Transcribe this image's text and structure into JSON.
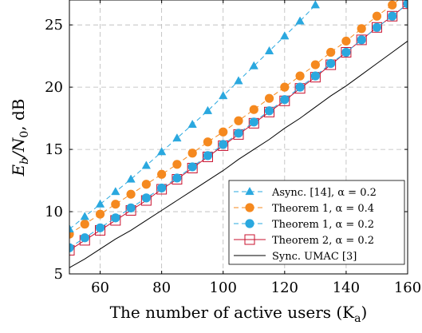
{
  "chart_data": {
    "type": "line",
    "xlabel": "The number of active users (K",
    "xlabel_sub": "a",
    "xlabel_close": ")",
    "ylabel_main": "E",
    "ylabel_sub1": "b",
    "ylabel_slash": "/N",
    "ylabel_sub2": "0",
    "ylabel_unit": ", dB",
    "xlim": [
      50,
      160
    ],
    "ylim": [
      5,
      27
    ],
    "xticks": [
      60,
      80,
      100,
      120,
      140,
      160
    ],
    "yticks": [
      5,
      10,
      15,
      20,
      25
    ],
    "xtick_labels": [
      "60",
      "80",
      "100",
      "120",
      "140",
      "160"
    ],
    "ytick_labels": [
      "5",
      "10",
      "15",
      "20",
      "25"
    ],
    "grid": true,
    "legend_position": "bottom-right",
    "series": [
      {
        "name": "Async. [14], α = 0.2",
        "color": "#2aa8df",
        "line": "dashed",
        "marker": "triangle",
        "x": [
          50,
          55,
          60,
          65,
          70,
          75,
          80,
          85,
          90,
          95,
          100,
          105,
          110,
          115,
          120,
          125,
          130
        ],
        "y": [
          8.6,
          9.6,
          10.6,
          11.6,
          12.6,
          13.7,
          14.8,
          15.9,
          17.0,
          18.1,
          19.3,
          20.5,
          21.7,
          22.9,
          24.1,
          25.3,
          26.6
        ]
      },
      {
        "name": "Theorem 1, α = 0.4",
        "color": "#f5891f",
        "line": "dashed",
        "marker": "circle",
        "x": [
          50,
          55,
          60,
          65,
          70,
          75,
          80,
          85,
          90,
          95,
          100,
          105,
          110,
          115,
          120,
          125,
          130,
          135,
          140,
          145,
          150,
          155,
          160
        ],
        "y": [
          8.2,
          9.0,
          9.8,
          10.6,
          11.4,
          12.2,
          13.0,
          13.8,
          14.7,
          15.6,
          16.4,
          17.3,
          18.2,
          19.1,
          20.0,
          20.9,
          21.8,
          22.8,
          23.7,
          24.7,
          25.7,
          26.6,
          27.6
        ]
      },
      {
        "name": "Theorem 1, α = 0.2",
        "color": "#2aa8df",
        "line": "dashed",
        "marker": "circle",
        "x": [
          50,
          55,
          60,
          65,
          70,
          75,
          80,
          85,
          90,
          95,
          100,
          105,
          110,
          115,
          120,
          125,
          130,
          135,
          140,
          145,
          150,
          155,
          160
        ],
        "y": [
          7.1,
          7.9,
          8.7,
          9.5,
          10.3,
          11.1,
          11.9,
          12.7,
          13.6,
          14.5,
          15.4,
          16.3,
          17.2,
          18.1,
          19.0,
          20.0,
          20.9,
          21.9,
          22.8,
          23.8,
          24.8,
          25.7,
          26.7
        ]
      },
      {
        "name": "Theorem 2, α = 0.2",
        "color": "#c8102e",
        "line": "solid",
        "marker": "square-open",
        "x": [
          50,
          55,
          60,
          65,
          70,
          75,
          80,
          85,
          90,
          95,
          100,
          105,
          110,
          115,
          120,
          125,
          130,
          135,
          140,
          145,
          150,
          155,
          160
        ],
        "y": [
          6.9,
          7.7,
          8.5,
          9.3,
          10.1,
          10.9,
          11.8,
          12.6,
          13.5,
          14.4,
          15.3,
          16.2,
          17.1,
          18.0,
          18.9,
          19.9,
          20.8,
          21.8,
          22.8,
          23.8,
          24.8,
          25.7,
          26.7
        ]
      },
      {
        "name": "Sync. UMAC [3]",
        "color": "#000000",
        "line": "solid",
        "marker": "none",
        "x": [
          50,
          55,
          60,
          65,
          70,
          75,
          80,
          85,
          90,
          95,
          100,
          105,
          110,
          115,
          120,
          125,
          130,
          135,
          140,
          145,
          150,
          155,
          160
        ],
        "y": [
          5.5,
          6.2,
          7.0,
          7.8,
          8.5,
          9.3,
          10.1,
          10.9,
          11.7,
          12.5,
          13.3,
          14.2,
          15.0,
          15.8,
          16.7,
          17.5,
          18.4,
          19.3,
          20.1,
          21.0,
          21.9,
          22.8,
          23.7
        ]
      }
    ]
  }
}
